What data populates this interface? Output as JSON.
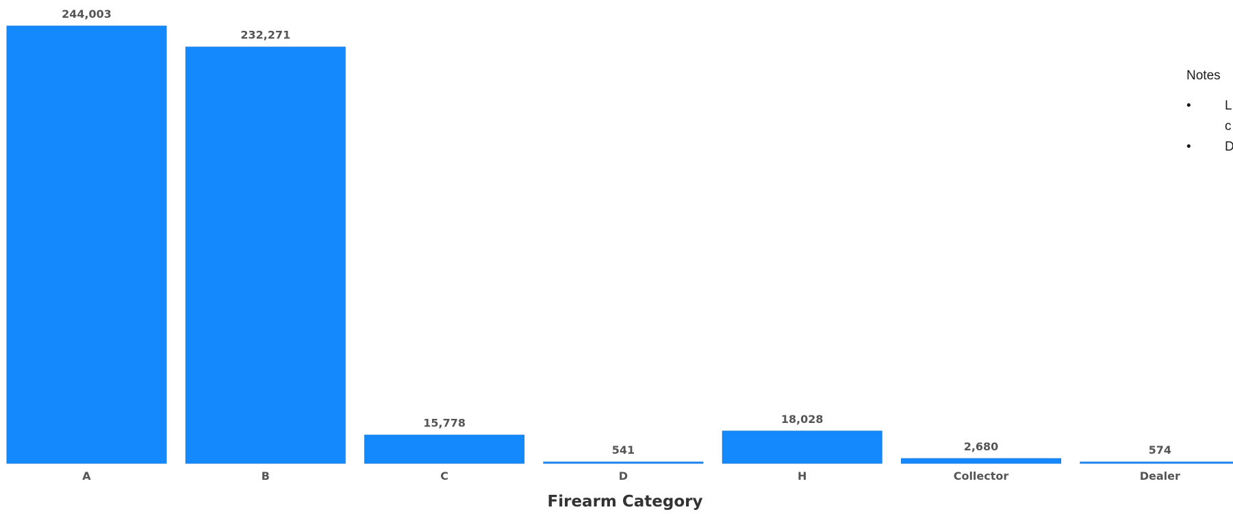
{
  "chart_data": {
    "type": "bar",
    "categories": [
      "A",
      "B",
      "C",
      "D",
      "H",
      "Collector",
      "Dealer"
    ],
    "values": [
      244003,
      232271,
      15778,
      541,
      18028,
      2680,
      574
    ],
    "value_labels": [
      "244,003",
      "232,271",
      "15,778",
      "541",
      "18,028",
      "2,680",
      "574"
    ],
    "title": "",
    "xlabel": "Firearm Category",
    "ylabel": "",
    "ylim": [
      0,
      244003
    ],
    "grid": false,
    "bar_color": "#1389FD"
  },
  "notes": {
    "title": "Notes",
    "bullets": [
      {
        "marker": "•",
        "text": "L"
      },
      {
        "marker": "",
        "text": "c"
      },
      {
        "marker": "•",
        "text": "D"
      }
    ]
  }
}
